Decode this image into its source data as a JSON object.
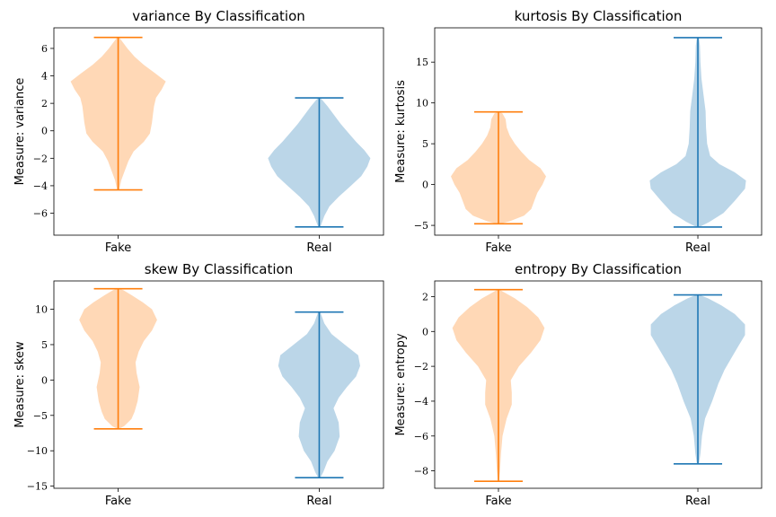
{
  "colors": {
    "fake": "#ff7f0e",
    "real": "#1f77b4"
  },
  "chart_data": [
    {
      "type": "violin",
      "title": "variance By Classification",
      "ylabel": "Measure: variance",
      "categories": [
        "Fake",
        "Real"
      ],
      "ylim": [
        -7.6,
        7.5
      ],
      "yticks": [
        -6,
        -4,
        -2,
        0,
        2,
        4,
        6
      ],
      "series": [
        {
          "category": "Fake",
          "min": -4.3,
          "max": 6.8,
          "profile": [
            [
              -4.3,
              0.02
            ],
            [
              -3.6,
              0.06
            ],
            [
              -3.0,
              0.12
            ],
            [
              -2.2,
              0.2
            ],
            [
              -1.5,
              0.3
            ],
            [
              -0.8,
              0.5
            ],
            [
              -0.2,
              0.62
            ],
            [
              0.6,
              0.66
            ],
            [
              1.2,
              0.68
            ],
            [
              1.8,
              0.7
            ],
            [
              2.4,
              0.74
            ],
            [
              3.0,
              0.85
            ],
            [
              3.6,
              0.93
            ],
            [
              4.2,
              0.72
            ],
            [
              4.8,
              0.5
            ],
            [
              5.4,
              0.32
            ],
            [
              6.0,
              0.18
            ],
            [
              6.5,
              0.08
            ],
            [
              6.8,
              0.02
            ]
          ]
        },
        {
          "category": "Real",
          "min": -7.0,
          "max": 2.4,
          "profile": [
            [
              -7.0,
              0.02
            ],
            [
              -6.6,
              0.06
            ],
            [
              -6.2,
              0.1
            ],
            [
              -5.5,
              0.2
            ],
            [
              -4.8,
              0.38
            ],
            [
              -4.0,
              0.62
            ],
            [
              -3.3,
              0.82
            ],
            [
              -2.6,
              0.94
            ],
            [
              -2.0,
              1.0
            ],
            [
              -1.4,
              0.88
            ],
            [
              -0.8,
              0.72
            ],
            [
              -0.2,
              0.58
            ],
            [
              0.5,
              0.42
            ],
            [
              1.2,
              0.28
            ],
            [
              1.8,
              0.16
            ],
            [
              2.2,
              0.07
            ],
            [
              2.4,
              0.02
            ]
          ]
        }
      ]
    },
    {
      "type": "violin",
      "title": "kurtosis By Classification",
      "ylabel": "Measure: kurtosis",
      "categories": [
        "Fake",
        "Real"
      ],
      "ylim": [
        -6.2,
        19.2
      ],
      "yticks": [
        -5,
        0,
        5,
        10,
        15
      ],
      "series": [
        {
          "category": "Fake",
          "min": -4.8,
          "max": 8.9,
          "profile": [
            [
              -4.8,
              0.04
            ],
            [
              -4.5,
              0.22
            ],
            [
              -3.8,
              0.5
            ],
            [
              -3.0,
              0.64
            ],
            [
              -2.0,
              0.7
            ],
            [
              -1.0,
              0.76
            ],
            [
              0.0,
              0.86
            ],
            [
              1.0,
              0.93
            ],
            [
              2.0,
              0.82
            ],
            [
              3.0,
              0.6
            ],
            [
              4.0,
              0.45
            ],
            [
              5.0,
              0.32
            ],
            [
              6.0,
              0.22
            ],
            [
              7.0,
              0.16
            ],
            [
              8.0,
              0.14
            ],
            [
              8.7,
              0.08
            ],
            [
              8.9,
              0.02
            ]
          ]
        },
        {
          "category": "Real",
          "min": -5.2,
          "max": 18.0,
          "profile": [
            [
              -5.2,
              0.03
            ],
            [
              -4.6,
              0.22
            ],
            [
              -3.5,
              0.5
            ],
            [
              -2.0,
              0.72
            ],
            [
              -0.5,
              0.92
            ],
            [
              0.5,
              0.94
            ],
            [
              1.5,
              0.72
            ],
            [
              2.5,
              0.42
            ],
            [
              3.5,
              0.24
            ],
            [
              5.0,
              0.18
            ],
            [
              7.0,
              0.16
            ],
            [
              9.0,
              0.15
            ],
            [
              11.0,
              0.11
            ],
            [
              13.0,
              0.07
            ],
            [
              15.0,
              0.05
            ],
            [
              17.0,
              0.04
            ],
            [
              18.0,
              0.02
            ]
          ]
        }
      ]
    },
    {
      "type": "violin",
      "title": "skew By Classification",
      "ylabel": "Measure: skew",
      "categories": [
        "Fake",
        "Real"
      ],
      "ylim": [
        -15.3,
        14.0
      ],
      "yticks": [
        -15,
        -10,
        -5,
        0,
        5,
        10
      ],
      "series": [
        {
          "category": "Fake",
          "min": -6.9,
          "max": 12.9,
          "profile": [
            [
              -6.9,
              0.02
            ],
            [
              -6.5,
              0.12
            ],
            [
              -5.5,
              0.26
            ],
            [
              -4.5,
              0.32
            ],
            [
              -3.0,
              0.38
            ],
            [
              -1.0,
              0.42
            ],
            [
              1.0,
              0.36
            ],
            [
              2.5,
              0.34
            ],
            [
              4.0,
              0.4
            ],
            [
              5.5,
              0.5
            ],
            [
              7.0,
              0.66
            ],
            [
              8.5,
              0.76
            ],
            [
              10.0,
              0.66
            ],
            [
              11.0,
              0.48
            ],
            [
              12.0,
              0.26
            ],
            [
              12.7,
              0.1
            ],
            [
              12.9,
              0.02
            ]
          ]
        },
        {
          "category": "Real",
          "min": -13.8,
          "max": 9.6,
          "profile": [
            [
              -13.8,
              0.02
            ],
            [
              -13.0,
              0.08
            ],
            [
              -11.5,
              0.16
            ],
            [
              -10.0,
              0.3
            ],
            [
              -8.0,
              0.4
            ],
            [
              -6.0,
              0.38
            ],
            [
              -4.0,
              0.28
            ],
            [
              -2.5,
              0.38
            ],
            [
              -1.0,
              0.54
            ],
            [
              0.5,
              0.72
            ],
            [
              2.0,
              0.8
            ],
            [
              3.5,
              0.76
            ],
            [
              5.0,
              0.5
            ],
            [
              6.5,
              0.24
            ],
            [
              8.0,
              0.1
            ],
            [
              9.0,
              0.05
            ],
            [
              9.6,
              0.02
            ]
          ]
        }
      ]
    },
    {
      "type": "violin",
      "title": "entropy By Classification",
      "ylabel": "Measure: entropy",
      "categories": [
        "Fake",
        "Real"
      ],
      "ylim": [
        -9.0,
        2.9
      ],
      "yticks": [
        -8,
        -6,
        -4,
        -2,
        0,
        2
      ],
      "series": [
        {
          "category": "Fake",
          "min": -8.6,
          "max": 2.4,
          "profile": [
            [
              -8.6,
              0.01
            ],
            [
              -8.0,
              0.03
            ],
            [
              -7.0,
              0.05
            ],
            [
              -6.0,
              0.08
            ],
            [
              -5.0,
              0.16
            ],
            [
              -4.2,
              0.26
            ],
            [
              -3.5,
              0.26
            ],
            [
              -2.8,
              0.24
            ],
            [
              -2.0,
              0.4
            ],
            [
              -1.2,
              0.64
            ],
            [
              -0.5,
              0.82
            ],
            [
              0.2,
              0.9
            ],
            [
              0.8,
              0.78
            ],
            [
              1.4,
              0.56
            ],
            [
              1.9,
              0.32
            ],
            [
              2.2,
              0.14
            ],
            [
              2.4,
              0.02
            ]
          ]
        },
        {
          "category": "Real",
          "min": -7.6,
          "max": 2.1,
          "profile": [
            [
              -7.6,
              0.02
            ],
            [
              -7.0,
              0.05
            ],
            [
              -6.0,
              0.08
            ],
            [
              -5.0,
              0.14
            ],
            [
              -4.0,
              0.28
            ],
            [
              -3.0,
              0.4
            ],
            [
              -2.2,
              0.52
            ],
            [
              -1.5,
              0.66
            ],
            [
              -0.8,
              0.8
            ],
            [
              -0.2,
              0.92
            ],
            [
              0.4,
              0.92
            ],
            [
              1.0,
              0.72
            ],
            [
              1.5,
              0.46
            ],
            [
              1.9,
              0.2
            ],
            [
              2.1,
              0.03
            ]
          ]
        }
      ]
    }
  ]
}
